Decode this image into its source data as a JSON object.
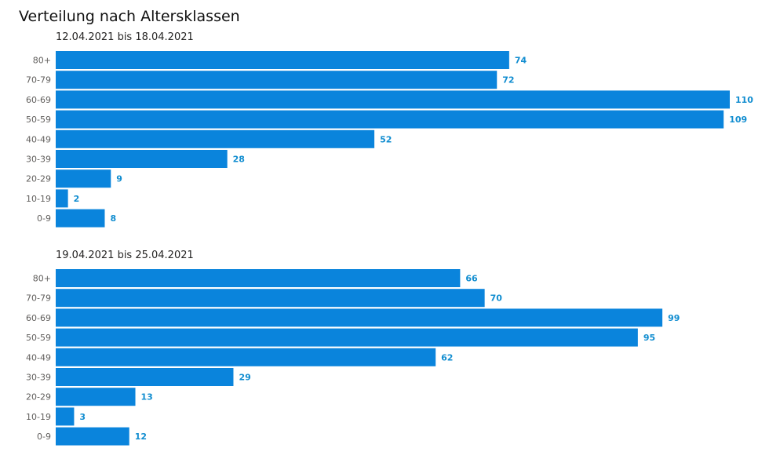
{
  "title": "Verteilung nach Altersklassen",
  "bar_color": "#0a84dc",
  "label_color": "#118dd0",
  "chart_data": [
    {
      "type": "bar",
      "orientation": "horizontal",
      "title": "12.04.2021 bis 18.04.2021",
      "categories": [
        "80+",
        "70-79",
        "60-69",
        "50-59",
        "40-49",
        "30-39",
        "20-29",
        "10-19",
        "0-9"
      ],
      "values": [
        74,
        72,
        110,
        109,
        52,
        28,
        9,
        2,
        8
      ],
      "xlim": [
        0,
        110
      ],
      "grid": false,
      "data_labels": true
    },
    {
      "type": "bar",
      "orientation": "horizontal",
      "title": "19.04.2021 bis 25.04.2021",
      "categories": [
        "80+",
        "70-79",
        "60-69",
        "50-59",
        "40-49",
        "30-39",
        "20-29",
        "10-19",
        "0-9"
      ],
      "values": [
        66,
        70,
        99,
        95,
        62,
        29,
        13,
        3,
        12
      ],
      "xlim": [
        0,
        110
      ],
      "grid": false,
      "data_labels": true
    }
  ]
}
